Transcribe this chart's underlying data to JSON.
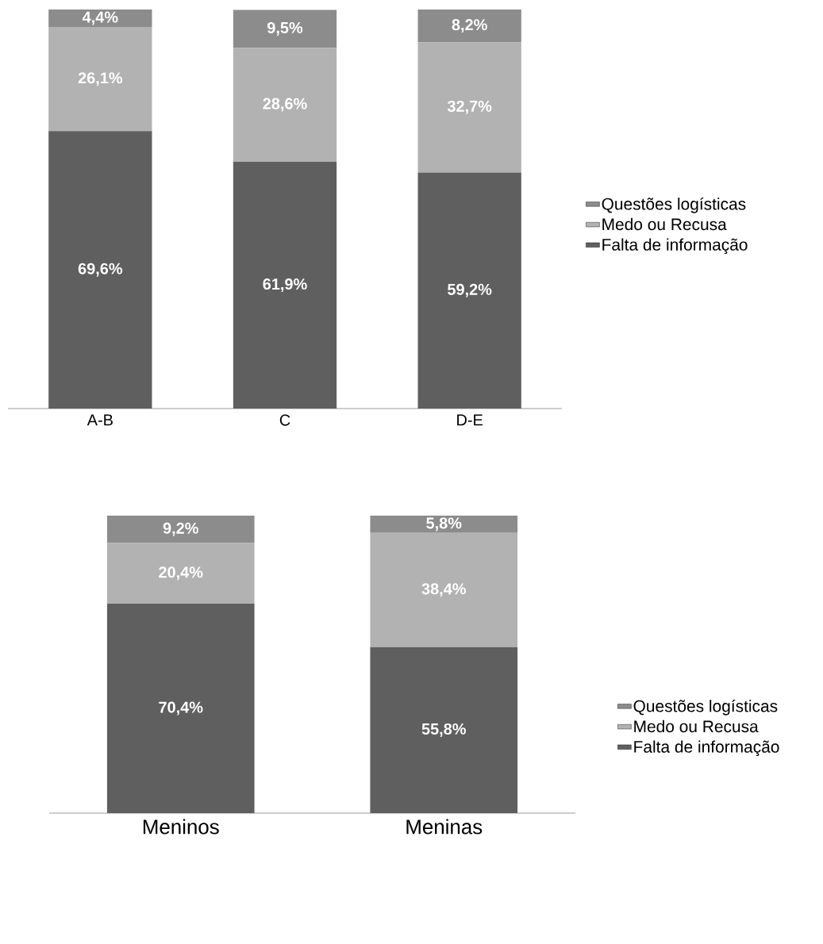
{
  "chart_data": [
    {
      "type": "bar",
      "stacked": true,
      "data_labels": true,
      "legend": "right",
      "categories": [
        "A-B",
        "C",
        "D-E"
      ],
      "series": [
        {
          "name": "Falta de informação",
          "color": "#5f5f5f",
          "values": [
            69.6,
            61.9,
            59.2
          ],
          "value_labels": [
            "69,6%",
            "61,9%",
            "59,2%"
          ]
        },
        {
          "name": "Medo ou Recusa",
          "color": "#b2b2b2",
          "values": [
            26.1,
            28.6,
            32.7
          ],
          "value_labels": [
            "26,1%",
            "28,6%",
            "32,7%"
          ]
        },
        {
          "name": "Questões logísticas",
          "color": "#8c8c8c",
          "values": [
            4.4,
            9.5,
            8.2
          ],
          "value_labels": [
            "4,4%",
            "9,5%",
            "8,2%"
          ]
        }
      ]
    },
    {
      "type": "bar",
      "stacked": true,
      "data_labels": true,
      "legend": "right",
      "categories": [
        "Meninos",
        "Meninas"
      ],
      "series": [
        {
          "name": "Falta de informação",
          "color": "#5f5f5f",
          "values": [
            70.4,
            55.8
          ],
          "value_labels": [
            "70,4%",
            "55,8%"
          ]
        },
        {
          "name": "Medo ou Recusa",
          "color": "#b2b2b2",
          "values": [
            20.4,
            38.4
          ],
          "value_labels": [
            "20,4%",
            "38,4%"
          ]
        },
        {
          "name": "Questões logísticas",
          "color": "#8c8c8c",
          "values": [
            9.2,
            5.8
          ],
          "value_labels": [
            "9,2%",
            "5,8%"
          ]
        }
      ]
    }
  ]
}
